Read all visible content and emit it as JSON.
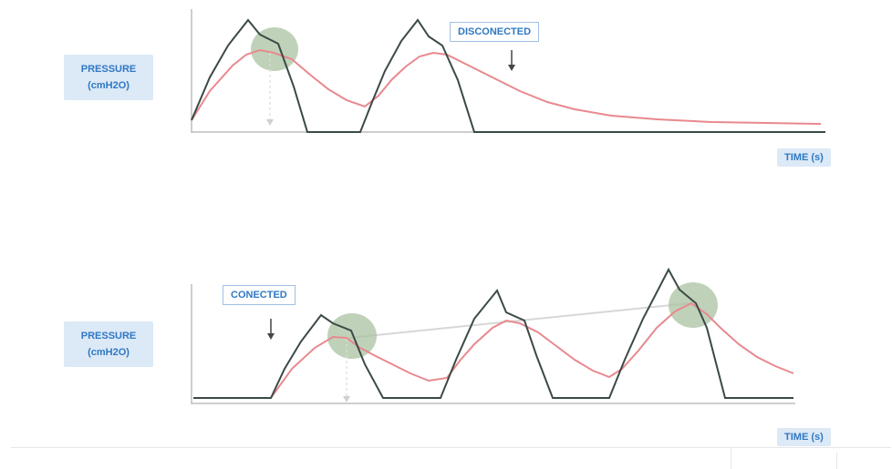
{
  "chart_data": [
    {
      "type": "line",
      "ylabel_line1": "PRESSURE",
      "ylabel_line2": "(cmH2O)",
      "xlabel": "TIME (s)",
      "annotation": "DISCONECTED",
      "colors": {
        "airway": "#3b4a46",
        "alveolar": "#e8898f",
        "circle": "#a9c3a1"
      }
    },
    {
      "type": "line",
      "ylabel_line1": "PRESSURE",
      "ylabel_line2": "(cmH2O)",
      "xlabel": "TIME (s)",
      "annotation": "CONECTED",
      "colors": {
        "airway": "#3b4a46",
        "alveolar": "#e8898f",
        "circle": "#a9c3a1",
        "trend": "#d7d7d7"
      }
    }
  ]
}
